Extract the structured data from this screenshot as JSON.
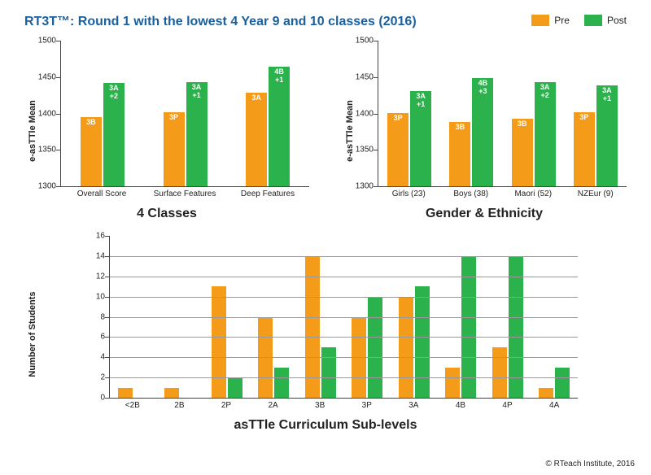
{
  "title": "RT3T™: Round 1 with the lowest 4 Year 9 and 10 classes (2016)",
  "legend": {
    "pre": "Pre",
    "post": "Post"
  },
  "colors": {
    "pre": "#f59b1a",
    "post": "#2bb24c",
    "grid": "#999999",
    "axis": "#444444"
  },
  "credit": "© RTeach Institute, 2016",
  "chart1": {
    "title": "4 Classes",
    "ylabel": "e-asTTle Mean",
    "ylim": [
      1300,
      1500
    ],
    "ytick_step": 50,
    "categories": [
      "Overall Score",
      "Surface Features",
      "Deep Features"
    ],
    "pre": {
      "values": [
        1395,
        1402,
        1428
      ],
      "labels": [
        "3B",
        "3P",
        "3A"
      ]
    },
    "post": {
      "values": [
        1442,
        1443,
        1464
      ],
      "labels": [
        "3A\n+2",
        "3A\n+1",
        "4B\n+1"
      ]
    }
  },
  "chart2": {
    "title": "Gender & Ethnicity",
    "ylabel": "e-asTTle Mean",
    "ylim": [
      1300,
      1500
    ],
    "ytick_step": 50,
    "categories": [
      "Girls (23)",
      "Boys (38)",
      "Maori (52)",
      "NZEur (9)"
    ],
    "pre": {
      "values": [
        1401,
        1388,
        1393,
        1402
      ],
      "labels": [
        "3P",
        "3B",
        "3B",
        "3P"
      ]
    },
    "post": {
      "values": [
        1431,
        1449,
        1443,
        1439
      ],
      "labels": [
        "3A\n+1",
        "4B\n+3",
        "3A\n+2",
        "3A\n+1"
      ]
    }
  },
  "chart3": {
    "title": "asTTle Curriculum Sub-levels",
    "ylabel": "Number of Students",
    "ylim": [
      0,
      16
    ],
    "ytick_step": 2,
    "categories": [
      "<2B",
      "2B",
      "2P",
      "2A",
      "3B",
      "3P",
      "3A",
      "4B",
      "4P",
      "4A"
    ],
    "pre": {
      "values": [
        1,
        1,
        11,
        8,
        14,
        8,
        10,
        3,
        5,
        1
      ]
    },
    "post": {
      "values": [
        0,
        0,
        2,
        3,
        5,
        10,
        11,
        14,
        14,
        3
      ]
    }
  }
}
